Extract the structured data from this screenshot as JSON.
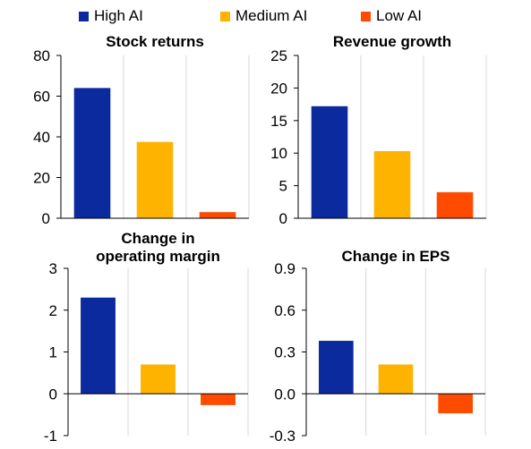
{
  "legend": [
    {
      "label": "High AI",
      "color": "#0a2a9e"
    },
    {
      "label": "Medium AI",
      "color": "#fdb300"
    },
    {
      "label": "Low AI",
      "color": "#ff4b00"
    }
  ],
  "chart_data": [
    {
      "type": "bar",
      "title": "Stock returns",
      "categories": [
        "High AI",
        "Medium AI",
        "Low AI"
      ],
      "values": [
        64,
        37.5,
        3
      ],
      "ylim": [
        0,
        80
      ],
      "yticks": [
        0,
        20,
        40,
        60,
        80
      ],
      "ytick_labels": [
        "0",
        "20",
        "40",
        "60",
        "80"
      ],
      "grid": "vertical category separators"
    },
    {
      "type": "bar",
      "title": "Revenue growth",
      "categories": [
        "High AI",
        "Medium AI",
        "Low AI"
      ],
      "values": [
        17.2,
        10.3,
        4
      ],
      "ylim": [
        0,
        25
      ],
      "yticks": [
        0,
        5,
        10,
        15,
        20,
        25
      ],
      "ytick_labels": [
        "0",
        "5",
        "10",
        "15",
        "20",
        "25"
      ],
      "grid": "vertical category separators"
    },
    {
      "type": "bar",
      "title": "Change in\noperating margin",
      "categories": [
        "High AI",
        "Medium AI",
        "Low AI"
      ],
      "values": [
        2.3,
        0.7,
        -0.27
      ],
      "ylim": [
        -1,
        3
      ],
      "yticks": [
        -1,
        0,
        1,
        2,
        3
      ],
      "ytick_labels": [
        "-1",
        "0",
        "1",
        "2",
        "3"
      ],
      "grid": "vertical category separators"
    },
    {
      "type": "bar",
      "title": "Change in EPS",
      "categories": [
        "High AI",
        "Medium AI",
        "Low AI"
      ],
      "values": [
        0.38,
        0.21,
        -0.14
      ],
      "ylim": [
        -0.3,
        0.9
      ],
      "yticks": [
        -0.3,
        0.0,
        0.3,
        0.6,
        0.9
      ],
      "ytick_labels": [
        "-0.3",
        "0.0",
        "0.3",
        "0.6",
        "0.9"
      ],
      "grid": "vertical category separators"
    }
  ]
}
